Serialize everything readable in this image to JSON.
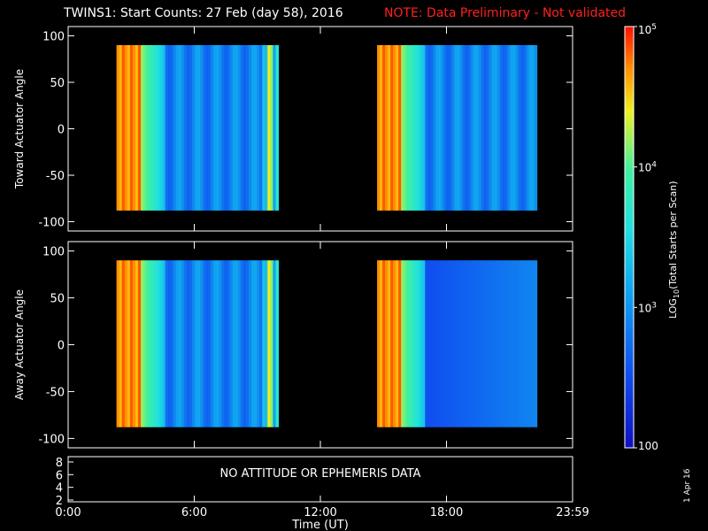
{
  "title": {
    "main": "TWINS1: Start Counts: 27 Feb (day  58), 2016",
    "note": "NOTE: Data Preliminary - Not validated",
    "note_color": "#ff2020"
  },
  "stamp": "1 Apr 16",
  "colorbar": {
    "label": "LOG10(Total Starts per Scan)",
    "label_base": "LOG",
    "label_sub": "10",
    "label_rest": "(Total Starts per Scan)",
    "range": [
      100,
      100000
    ],
    "ticks": [
      {
        "value": 100000,
        "text": "10",
        "sup": "5"
      },
      {
        "value": 10000,
        "text": "10",
        "sup": "4"
      },
      {
        "value": 1000,
        "text": "10",
        "sup": "3"
      },
      {
        "value": 100,
        "text": "100",
        "sup": ""
      }
    ]
  },
  "bottom_panel": {
    "message": "NO ATTITUDE OR EPHEMERIS DATA",
    "yticks": [
      "8",
      "6",
      "4",
      "2"
    ]
  },
  "chart_data": [
    {
      "type": "heatmap",
      "panel": "top",
      "ylabel": "Toward Actuator Angle",
      "xlabel": "",
      "ylim": [
        -110,
        110
      ],
      "yticks": [
        100,
        50,
        0,
        -50,
        -100
      ],
      "xlim_hours": [
        0,
        24
      ],
      "scan_blocks_hours": [
        [
          2.3,
          10.0
        ],
        [
          14.7,
          22.3
        ]
      ],
      "angle_range": [
        -88,
        90
      ],
      "color_scale": "log",
      "zlim": [
        100,
        100000
      ]
    },
    {
      "type": "heatmap",
      "panel": "middle",
      "ylabel": "Away Actuator Angle",
      "xlabel": "",
      "ylim": [
        -110,
        110
      ],
      "yticks": [
        100,
        50,
        0,
        -50,
        -100
      ],
      "xlim_hours": [
        0,
        24
      ],
      "scan_blocks_hours": [
        [
          2.3,
          10.0
        ],
        [
          14.7,
          22.3
        ]
      ],
      "angle_range": [
        -88,
        90
      ],
      "color_scale": "log",
      "zlim": [
        100,
        100000
      ]
    }
  ],
  "time_axis": {
    "label": "Time (UT)",
    "ticks": [
      {
        "hour": 0,
        "text": "0:00"
      },
      {
        "hour": 6,
        "text": "6:00"
      },
      {
        "hour": 12,
        "text": "12:00"
      },
      {
        "hour": 18,
        "text": "18:00"
      },
      {
        "hour": 24,
        "text": "23:59"
      }
    ]
  }
}
